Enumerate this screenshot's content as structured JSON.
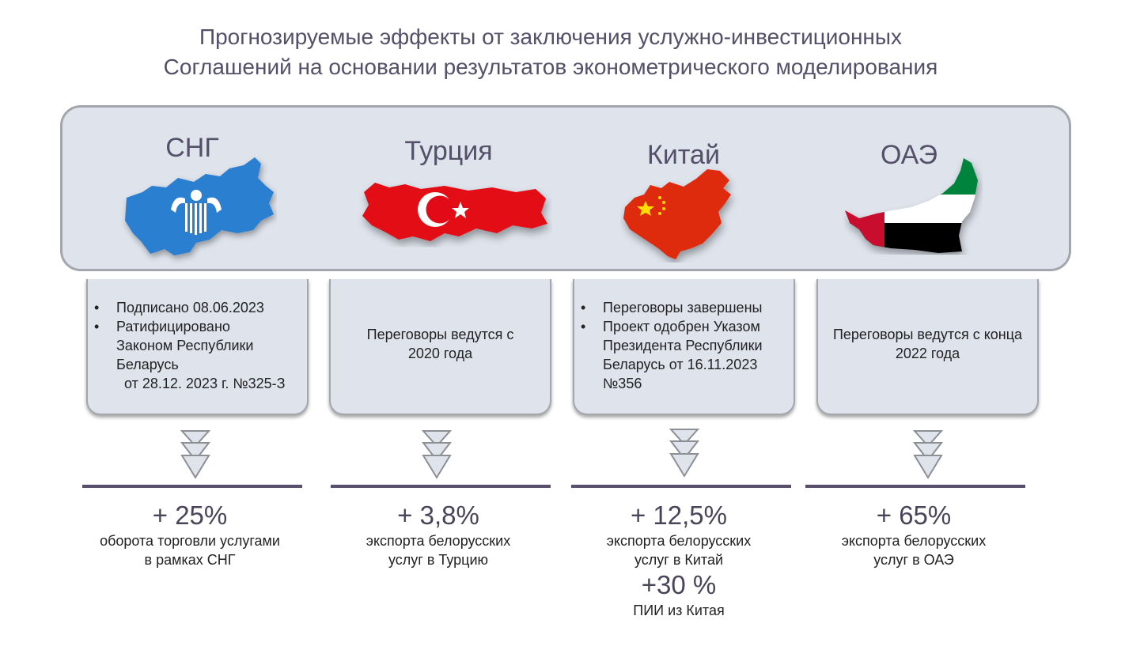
{
  "title": {
    "line1": "Прогнозируемые эффекты от заключения услужно-инвестиционных",
    "line2": "Соглашений на основании результатов эконометрического моделирования"
  },
  "columns": [
    {
      "name": "СНГ",
      "map_icon": "cis-map-icon",
      "status_items": [
        "Подписано 08.06.2023",
        "Ратифицировано"
      ],
      "status_cont": [
        "Законом Республики",
        "Беларусь",
        "  от 28.12. 2023 г. №325-З"
      ],
      "effect_value": "+ 25%",
      "effect_line1": "оборота торговли услугами",
      "effect_line2": "в рамках СНГ"
    },
    {
      "name": "Турция",
      "map_icon": "turkey-flag-map-icon",
      "status_text_line1": "Переговоры ведутся с",
      "status_text_line2": "2020 года",
      "effect_value": "+ 3,8%",
      "effect_line1": "экспорта белорусских",
      "effect_line2": "услуг в Турцию"
    },
    {
      "name": "Китай",
      "map_icon": "china-flag-map-icon",
      "status_items": [
        "Переговоры завершены",
        "Проект одобрен Указом"
      ],
      "status_cont": [
        "Президента Республики",
        "Беларусь от 16.11.2023",
        "№356"
      ],
      "effect_value": "+ 12,5%",
      "effect_line1": "экспорта белорусских",
      "effect_line2": "услуг в Китай",
      "extra_value": "+30 %",
      "extra_line": "ПИИ из Китая"
    },
    {
      "name": "ОАЭ",
      "map_icon": "uae-flag-map-icon",
      "status_text_line1": "Переговоры ведутся с конца",
      "status_text_line2": "2022 года",
      "effect_value": "+ 65%",
      "effect_line1": "экспорта белорусских",
      "effect_line2": "услуг в ОАЭ"
    }
  ],
  "colors": {
    "title": "#55506a",
    "panel_bg": "#dee3ec",
    "panel_border": "#a3a7ad",
    "divider": "#5a4e6e",
    "flag_red": "#e30a17",
    "cis_blue": "#2a7fd0"
  }
}
